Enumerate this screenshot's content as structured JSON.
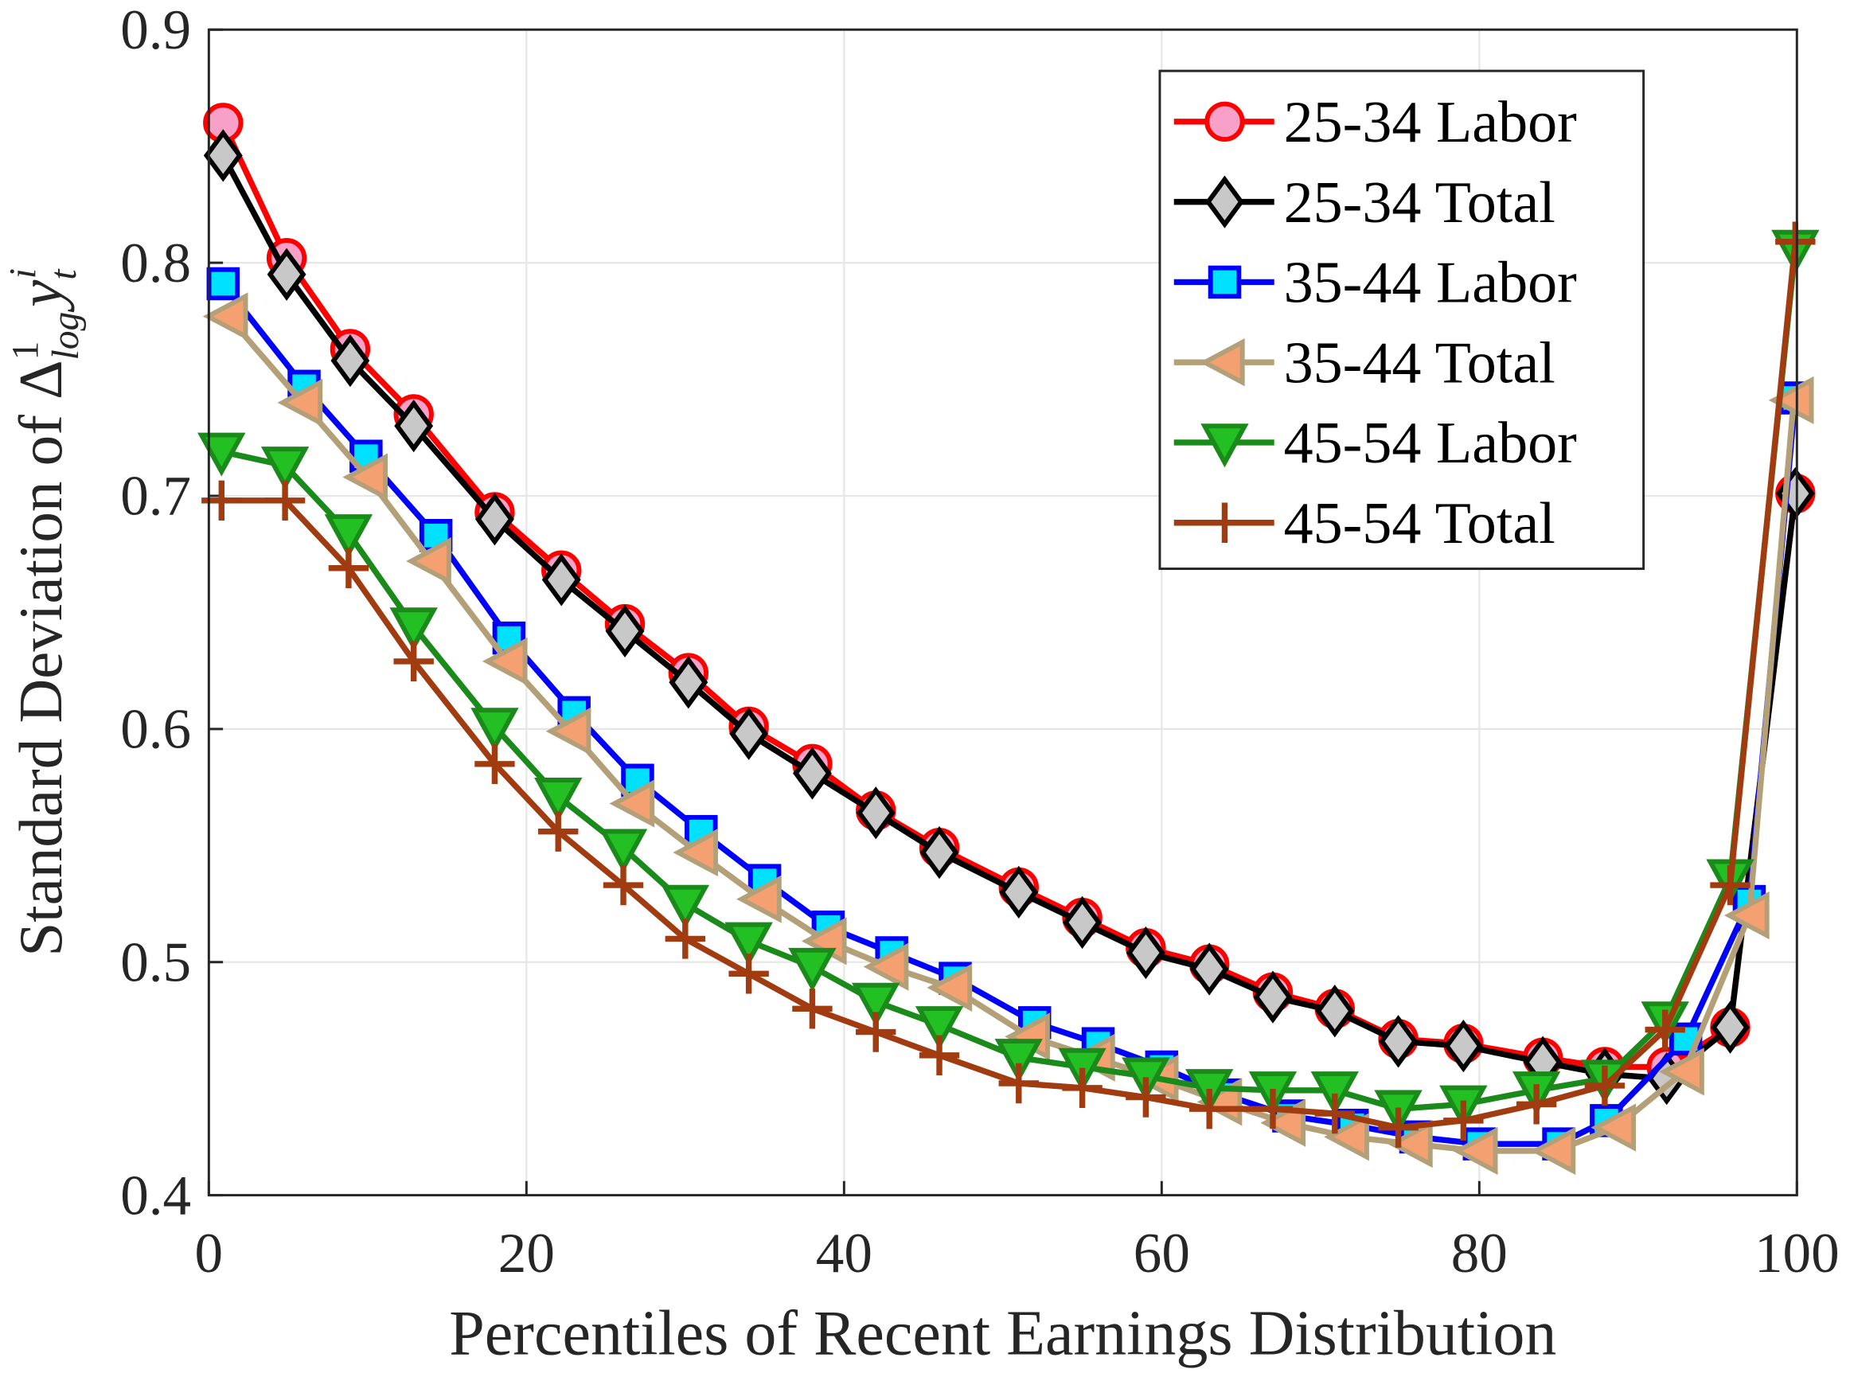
{
  "chart_data": {
    "type": "line",
    "title": "",
    "xlabel": "Percentiles of Recent Earnings Distribution",
    "ylabel": {
      "prefix": "Standard Deviation of ",
      "delta": "Δ",
      "sup1": "1",
      "sub1": "log",
      "var": "y",
      "sub2": "t",
      "sup2": "i"
    },
    "xlim": [
      0,
      100
    ],
    "ylim": [
      0.4,
      0.9
    ],
    "xticks": [
      0,
      20,
      40,
      60,
      80,
      100
    ],
    "yticks": [
      0.4,
      0.5,
      0.6,
      0.7,
      0.8,
      0.9
    ],
    "ytick_labels": [
      "0.4",
      "0.5",
      "0.6",
      "0.7",
      "0.8",
      "0.9"
    ],
    "grid": true,
    "legend_placement": "top-right",
    "series": [
      {
        "name": "25-34 Labor",
        "color": "#ff0000",
        "fill": "#f8a0c8",
        "marker": "circle",
        "x": [
          0.9,
          4.9,
          8.9,
          12.9,
          18,
          22.2,
          26.2,
          30.2,
          34,
          38,
          42,
          46,
          51,
          55,
          59,
          63,
          67,
          70.9,
          74.9,
          79,
          84,
          87.9,
          91.8,
          95.8,
          99.9
        ],
        "y": [
          0.86,
          0.802,
          0.763,
          0.735,
          0.693,
          0.668,
          0.645,
          0.624,
          0.601,
          0.585,
          0.565,
          0.549,
          0.532,
          0.519,
          0.506,
          0.499,
          0.487,
          0.48,
          0.467,
          0.465,
          0.459,
          0.455,
          0.455,
          0.472,
          0.701
        ]
      },
      {
        "name": "25-34 Total",
        "color": "#000000",
        "fill": "#c8c8c8",
        "marker": "diamond",
        "x": [
          0.9,
          4.9,
          8.9,
          12.9,
          18,
          22.2,
          26.2,
          30.2,
          34,
          38,
          42,
          46,
          51,
          55,
          59,
          63,
          67,
          70.9,
          74.9,
          79,
          84,
          87.9,
          91.8,
          95.8,
          99.9
        ],
        "y": [
          0.846,
          0.795,
          0.758,
          0.73,
          0.69,
          0.664,
          0.642,
          0.62,
          0.598,
          0.581,
          0.564,
          0.547,
          0.53,
          0.517,
          0.504,
          0.497,
          0.485,
          0.479,
          0.466,
          0.464,
          0.457,
          0.452,
          0.45,
          0.472,
          0.701
        ]
      },
      {
        "name": "35-44 Labor",
        "color": "#0000ff",
        "fill": "#00e0ff",
        "marker": "square",
        "x": [
          0.9,
          6,
          9.9,
          14.3,
          18.9,
          23,
          27,
          31,
          35,
          39,
          43,
          47,
          52,
          56,
          60,
          64,
          68,
          72,
          76,
          80,
          85,
          88,
          93,
          97,
          99.9
        ],
        "y": [
          0.791,
          0.747,
          0.717,
          0.683,
          0.639,
          0.607,
          0.578,
          0.556,
          0.535,
          0.515,
          0.504,
          0.493,
          0.474,
          0.465,
          0.455,
          0.443,
          0.434,
          0.43,
          0.425,
          0.422,
          0.422,
          0.432,
          0.467,
          0.526,
          0.742
        ]
      },
      {
        "name": "35-44 Total",
        "color": "#b4a078",
        "fill": "#f4a070",
        "marker": "triangle-left",
        "x": [
          1.2,
          5.9,
          10,
          14,
          18.8,
          22.8,
          26.8,
          30.8,
          34.8,
          38.9,
          42.8,
          46.8,
          51.7,
          55.8,
          59.8,
          63.8,
          67.8,
          71.8,
          75.8,
          79.9,
          84.8,
          88.6,
          92.9,
          97,
          99.8
        ],
        "y": [
          0.777,
          0.74,
          0.708,
          0.672,
          0.629,
          0.599,
          0.568,
          0.547,
          0.527,
          0.509,
          0.498,
          0.489,
          0.468,
          0.459,
          0.45,
          0.44,
          0.431,
          0.425,
          0.422,
          0.419,
          0.419,
          0.429,
          0.453,
          0.52,
          0.741
        ]
      },
      {
        "name": "45-54 Labor",
        "color": "#1a8a1a",
        "fill": "#22c022",
        "marker": "triangle-down",
        "x": [
          0.8,
          4.8,
          8.8,
          12.9,
          18,
          22,
          26.1,
          30,
          34,
          38,
          42,
          46,
          51,
          55,
          59,
          63,
          67,
          70.9,
          74.9,
          79,
          83.6,
          87.9,
          91.7,
          95.8,
          99.9
        ],
        "y": [
          0.719,
          0.713,
          0.684,
          0.644,
          0.601,
          0.571,
          0.549,
          0.525,
          0.509,
          0.498,
          0.483,
          0.473,
          0.459,
          0.455,
          0.451,
          0.446,
          0.445,
          0.445,
          0.437,
          0.439,
          0.445,
          0.45,
          0.475,
          0.536,
          0.806
        ]
      },
      {
        "name": "45-54 Total",
        "color": "#a03c10",
        "fill": "#a03c10",
        "marker": "plus",
        "x": [
          0.8,
          4.8,
          8.8,
          12.9,
          18,
          22,
          26.1,
          30,
          34,
          38,
          42,
          46,
          51,
          55,
          59,
          63,
          67,
          70.9,
          74.9,
          79,
          83.6,
          87.9,
          91.7,
          95.8,
          99.9
        ],
        "y": [
          0.698,
          0.698,
          0.669,
          0.629,
          0.585,
          0.556,
          0.533,
          0.51,
          0.495,
          0.48,
          0.47,
          0.46,
          0.448,
          0.446,
          0.442,
          0.437,
          0.437,
          0.435,
          0.429,
          0.432,
          0.439,
          0.447,
          0.471,
          0.533,
          0.809
        ]
      }
    ]
  }
}
